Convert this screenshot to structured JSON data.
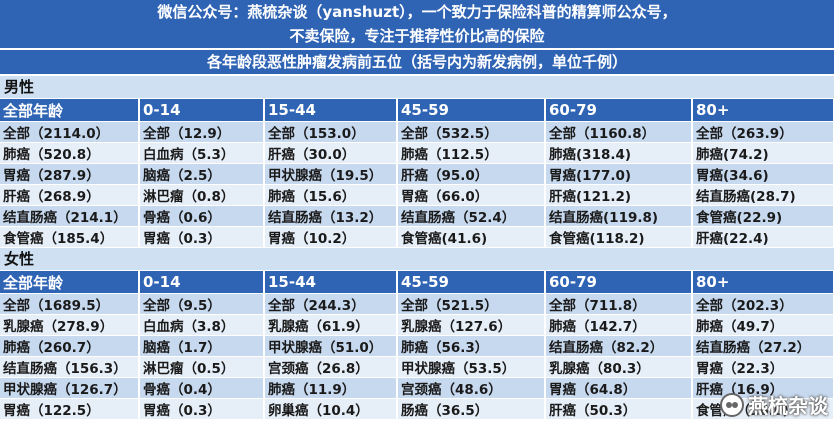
{
  "header": {
    "line1": "微信公众号：燕梳杂谈（yanshuzt），一个致力于保险科普的精算师公众号，",
    "line2": "不卖保险，专注于推荐性价比高的保险",
    "table_title": "各年龄段恶性肿瘤发病前五位（括号内为新发病例，单位千例）"
  },
  "male": {
    "label": "男性",
    "headers": [
      "全部年龄",
      "0-14",
      "15-44",
      "45-59",
      "60-79",
      "80+"
    ],
    "rows": [
      [
        "全部（2114.0）",
        "全部（12.9）",
        "全部（153.0）",
        "全部（532.5）",
        "全部（1160.8）",
        "全部（263.9）"
      ],
      [
        "肺癌（520.8）",
        "白血病（5.3）",
        "肝癌（30.0）",
        "肺癌（112.5）",
        "肺癌(318.4)",
        "肺癌(74.2)"
      ],
      [
        "胃癌（287.9）",
        "脑癌（2.5）",
        "甲状腺癌（19.5）",
        "肝癌（95.0）",
        "胃癌(177.0)",
        "胃癌(34.6)"
      ],
      [
        "肝癌（268.9）",
        "淋巴瘤（0.8）",
        "肺癌（15.6）",
        "胃癌（66.0）",
        "肝癌(121.2)",
        "结直肠癌(28.7)"
      ],
      [
        "结直肠癌（214.1）",
        "骨癌（0.6）",
        "结直肠癌（13.2）",
        "结直肠癌（52.4）",
        "结直肠癌(119.8)",
        "食管癌(22.9)"
      ],
      [
        "食管癌（185.4）",
        "胃癌（0.3）",
        "胃癌（10.2）",
        "食管癌(41.6)",
        "食管癌(118.2)",
        "肝癌(22.4)"
      ]
    ]
  },
  "female": {
    "label": "女性",
    "headers": [
      "全部年龄",
      "0-14",
      "15-44",
      "45-59",
      "60-79",
      "80+"
    ],
    "rows": [
      [
        "全部（1689.5）",
        "全部（9.5）",
        "全部（244.3）",
        "全部（521.5）",
        "全部（711.8）",
        "全部（202.3）"
      ],
      [
        "乳腺癌（278.9）",
        "白血病（3.8）",
        "乳腺癌（61.9）",
        "乳腺癌（127.6）",
        "肺癌（142.7）",
        "肺癌（49.7）"
      ],
      [
        "肺癌（260.7）",
        "脑癌（1.7）",
        "甲状腺癌（51.0）",
        "肺癌（56.3）",
        "结直肠癌（82.2）",
        "结直肠癌（27.2）"
      ],
      [
        "结直肠癌（156.3）",
        "淋巴瘤（0.5）",
        "宫颈癌（26.8）",
        "甲状腺癌（53.5）",
        "乳腺癌（80.3）",
        "胃癌（22.3）"
      ],
      [
        "甲状腺癌（126.7）",
        "骨癌（0.4）",
        "肺癌（11.9）",
        "宫颈癌（48.6）",
        "胃癌（64.8）",
        "肝癌（16.9）"
      ],
      [
        "胃癌（122.5）",
        "胃癌（0.3）",
        "卵巢癌（10.4）",
        "肠癌（36.5）",
        "肝癌（50.3）",
        "食管癌（16.0）"
      ]
    ]
  },
  "watermark": {
    "text": "燕梳杂谈",
    "icon": "wechat-icon"
  },
  "colors": {
    "header_blue": "#2f64b5",
    "row_dark": "#c7d9ef",
    "row_light": "#e6eef8",
    "section": "#cfe0f3"
  }
}
